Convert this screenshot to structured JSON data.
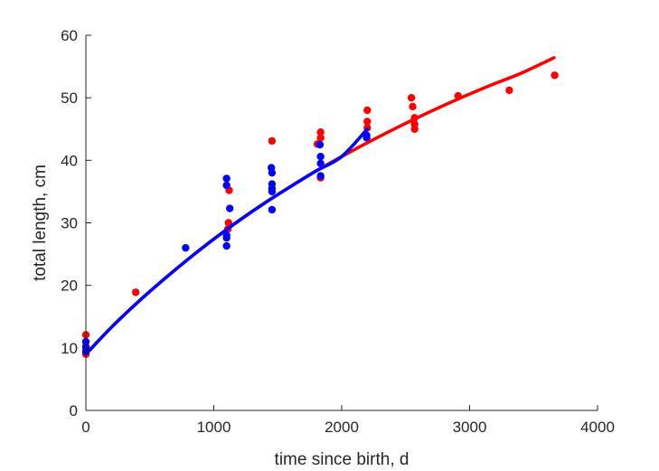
{
  "chart_data": {
    "type": "scatter",
    "title": "",
    "xlabel": "time since birth, d",
    "ylabel": "total length, cm",
    "xlim": [
      0,
      4000
    ],
    "ylim": [
      0,
      60
    ],
    "xticks": [
      0,
      1000,
      2000,
      3000,
      4000
    ],
    "yticks": [
      0,
      10,
      20,
      30,
      40,
      50,
      60
    ],
    "grid": false,
    "legend": "none",
    "series": [
      {
        "kind": "points",
        "color": "#ff0000",
        "points": [
          [
            0,
            12.1
          ],
          [
            0,
            9.0
          ],
          [
            0,
            9.8
          ],
          [
            390,
            18.9
          ],
          [
            1120,
            35.2
          ],
          [
            1115,
            30.0
          ],
          [
            1110,
            29.0
          ],
          [
            1455,
            43.1
          ],
          [
            1810,
            42.6
          ],
          [
            1835,
            44.5
          ],
          [
            1835,
            43.6
          ],
          [
            1835,
            37.2
          ],
          [
            2200,
            48.0
          ],
          [
            2200,
            46.2
          ],
          [
            2200,
            45.2
          ],
          [
            2545,
            50.0
          ],
          [
            2555,
            48.6
          ],
          [
            2570,
            46.8
          ],
          [
            2570,
            45.8
          ],
          [
            2570,
            45.0
          ],
          [
            2910,
            50.3
          ],
          [
            3310,
            51.2
          ],
          [
            3665,
            53.6
          ]
        ]
      },
      {
        "kind": "points",
        "color": "#0000ff",
        "points": [
          [
            0,
            11.0
          ],
          [
            0,
            10.2
          ],
          [
            0,
            9.4
          ],
          [
            780,
            26.0
          ],
          [
            1100,
            37.1
          ],
          [
            1100,
            36.0
          ],
          [
            1100,
            28.0
          ],
          [
            1100,
            27.6
          ],
          [
            1100,
            26.3
          ],
          [
            1125,
            32.3
          ],
          [
            1450,
            38.8
          ],
          [
            1455,
            38.0
          ],
          [
            1455,
            36.2
          ],
          [
            1455,
            35.5
          ],
          [
            1455,
            35.0
          ],
          [
            1455,
            32.1
          ],
          [
            1830,
            42.5
          ],
          [
            1835,
            40.6
          ],
          [
            1835,
            39.5
          ],
          [
            1835,
            37.5
          ],
          [
            2195,
            44.0
          ],
          [
            2195,
            43.6
          ]
        ]
      },
      {
        "kind": "curve",
        "color": "#ff0000",
        "x": [
          0,
          200,
          400,
          600,
          800,
          1000,
          1200,
          1400,
          1600,
          1800,
          2000,
          2200,
          2400,
          2600,
          2800,
          3000,
          3200,
          3400,
          3660
        ],
        "y": [
          9.0,
          13.3,
          17.2,
          20.8,
          24.2,
          27.4,
          30.4,
          33.2,
          35.8,
          38.3,
          40.6,
          42.8,
          44.9,
          46.9,
          48.8,
          50.6,
          52.3,
          53.9,
          56.4
        ]
      },
      {
        "kind": "curve",
        "color": "#0000ff",
        "x": [
          0,
          200,
          400,
          600,
          800,
          1000,
          1200,
          1400,
          1600,
          1800,
          2000,
          2200
        ],
        "y": [
          9.0,
          13.3,
          17.2,
          20.8,
          24.2,
          27.4,
          30.4,
          33.2,
          35.8,
          38.3,
          40.6,
          45.0
        ]
      }
    ]
  }
}
